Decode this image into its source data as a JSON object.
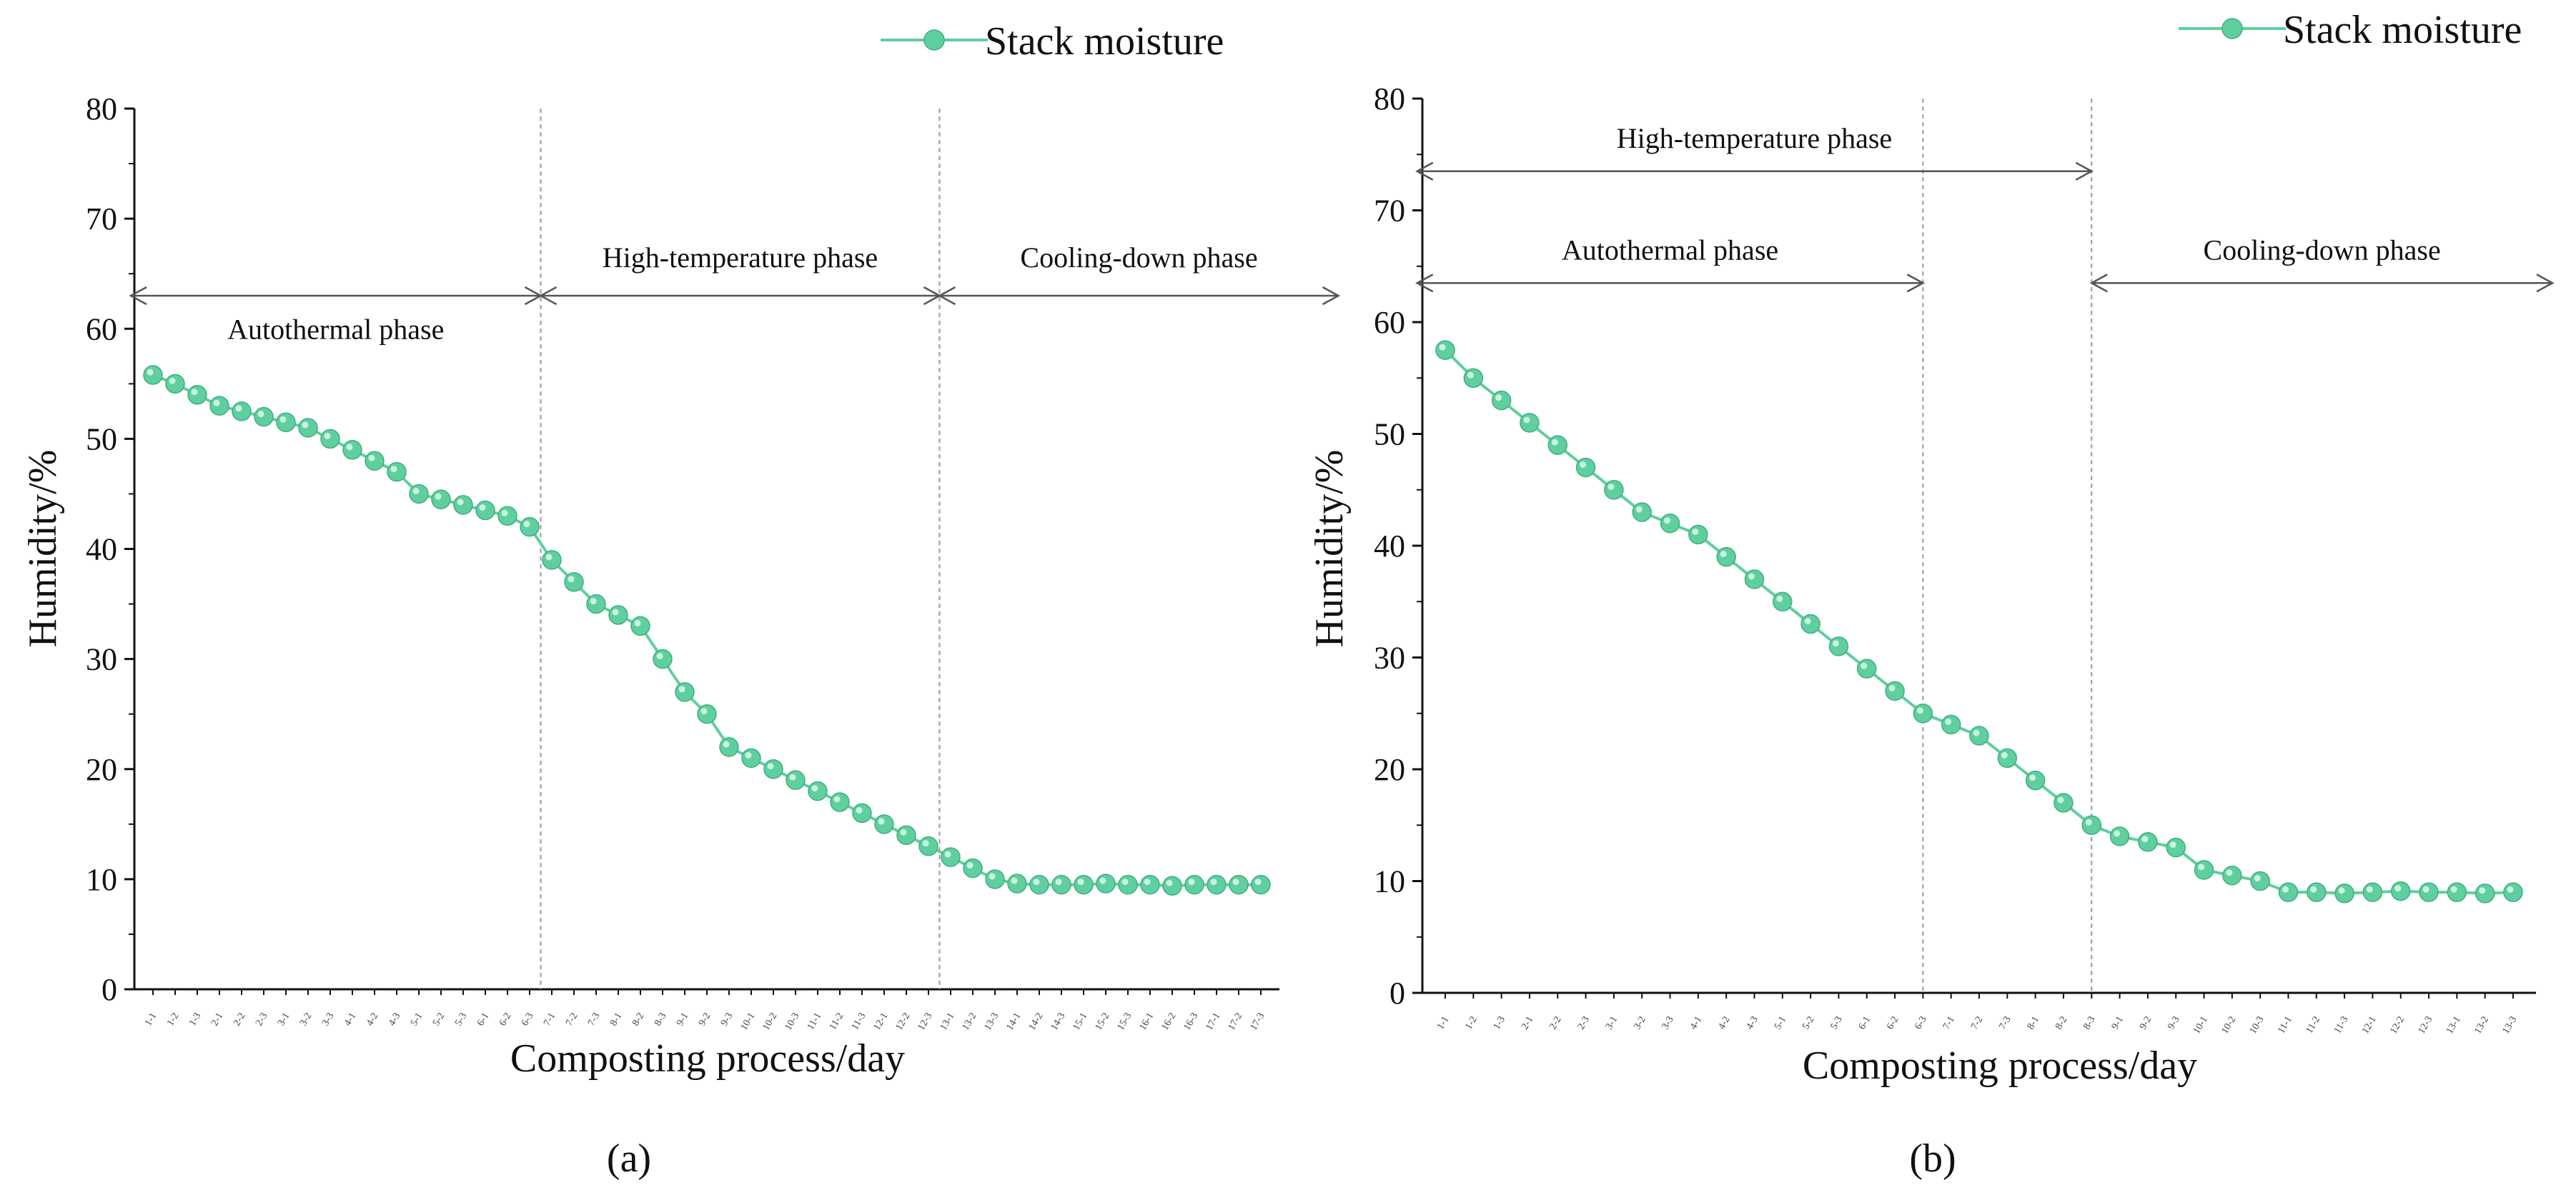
{
  "colors": {
    "series": "#5fcf9f",
    "axis": "#111111",
    "phase_line": "#9a9a9a",
    "arrow": "#555555"
  },
  "chart_data": [
    {
      "type": "line",
      "panel_label": "(a)",
      "legend": "Stack moisture",
      "xlabel": "Composting process/day",
      "ylabel": "Humidity/%",
      "ylim": [
        0,
        80
      ],
      "yticks": [
        "0",
        "10",
        "20",
        "30",
        "40",
        "50",
        "60",
        "70",
        "80"
      ],
      "categories": [
        "1-1",
        "1-2",
        "1-3",
        "2-1",
        "2-2",
        "2-3",
        "3-1",
        "3-2",
        "3-3",
        "4-1",
        "4-2",
        "4-3",
        "5-1",
        "5-2",
        "5-3",
        "6-1",
        "6-2",
        "6-3",
        "7-1",
        "7-2",
        "7-3",
        "8-1",
        "8-2",
        "8-3",
        "9-1",
        "9-2",
        "9-3",
        "10-1",
        "10-2",
        "10-3",
        "11-1",
        "11-2",
        "11-3",
        "12-1",
        "12-2",
        "12-3",
        "13-1",
        "13-2",
        "13-3",
        "14-1",
        "14-2",
        "14-3",
        "15-1",
        "15-2",
        "15-3",
        "16-1",
        "16-2",
        "16-3",
        "17-1",
        "17-2",
        "17-3"
      ],
      "series": [
        {
          "name": "Stack moisture",
          "values": [
            55.8,
            55,
            54,
            53,
            52.5,
            52,
            51.5,
            51,
            50,
            49,
            48,
            47,
            45,
            44.5,
            44,
            43.5,
            43,
            42,
            39,
            37,
            35,
            34,
            33,
            30,
            27,
            25,
            22,
            21,
            20,
            19,
            18,
            17,
            16,
            15,
            14,
            13,
            12,
            11,
            10,
            9.6,
            9.5,
            9.5,
            9.5,
            9.6,
            9.5,
            9.5,
            9.4,
            9.5,
            9.5,
            9.5,
            9.5
          ]
        }
      ],
      "phase_boundaries": [
        17.5,
        35.5
      ],
      "phases": [
        {
          "label": "Autothermal phase",
          "from": -1,
          "to": 17.5,
          "level": 63,
          "text_at": 60
        },
        {
          "label": "High-temperature phase",
          "from": 17.5,
          "to": 35.5,
          "level": 63,
          "text_at": 66.5
        },
        {
          "label": "Cooling-down phase",
          "from": 35.5,
          "to": 53.5,
          "level": 63,
          "text_at": 66.5
        }
      ]
    },
    {
      "type": "line",
      "panel_label": "(b)",
      "legend": "Stack moisture",
      "xlabel": "Composting process/day",
      "ylabel": "Humidity/%",
      "ylim": [
        0,
        80
      ],
      "yticks": [
        "0",
        "10",
        "20",
        "30",
        "40",
        "50",
        "60",
        "70",
        "80"
      ],
      "categories": [
        "1-1",
        "1-2",
        "1-3",
        "2-1",
        "2-2",
        "2-3",
        "3-1",
        "3-2",
        "3-3",
        "4-1",
        "4-2",
        "4-3",
        "5-1",
        "5-2",
        "5-3",
        "6-1",
        "6-2",
        "6-3",
        "7-1",
        "7-2",
        "7-3",
        "8-1",
        "8-2",
        "8-3",
        "9-1",
        "9-2",
        "9-3",
        "10-1",
        "10-2",
        "10-3",
        "11-1",
        "11-2",
        "11-3",
        "12-1",
        "12-2",
        "12-3",
        "13-1",
        "13-2",
        "13-3"
      ],
      "series": [
        {
          "name": "Stack moisture",
          "values": [
            57.5,
            55,
            53,
            51,
            49,
            47,
            45,
            43,
            42,
            41,
            39,
            37,
            35,
            33,
            31,
            29,
            27,
            25,
            24,
            23,
            21,
            19,
            17,
            15,
            14,
            13.5,
            13,
            11,
            10.5,
            10,
            9,
            9,
            8.9,
            9,
            9.1,
            9,
            9,
            8.9,
            9
          ]
        }
      ],
      "phase_boundaries": [
        17,
        23
      ],
      "phases": [
        {
          "label": "High-temperature phase",
          "from": -1,
          "to": 23,
          "level": 73.5,
          "text_at": 76.5
        },
        {
          "label": "Autothermal phase",
          "from": -1,
          "to": 17,
          "level": 63.5,
          "text_at": 66.5
        },
        {
          "label": "Cooling-down phase",
          "from": 23,
          "to": 39.4,
          "level": 63.5,
          "text_at": 66.5
        }
      ]
    }
  ]
}
